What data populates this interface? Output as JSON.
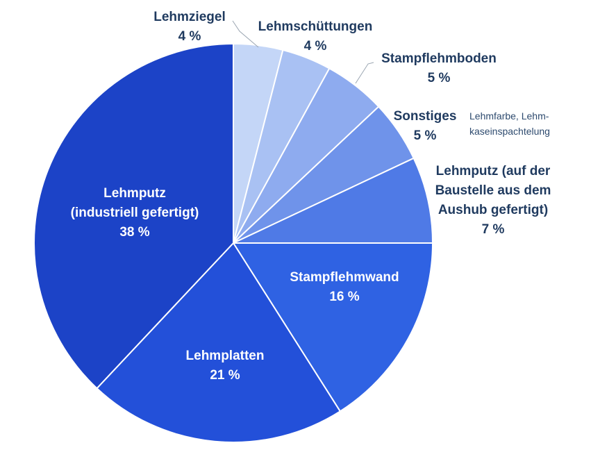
{
  "chart_data": {
    "type": "pie",
    "start": "top",
    "direction": "clockwise",
    "slices": [
      {
        "label": [
          "Lehmziegel"
        ],
        "value_label": "4 %",
        "value": 4,
        "color": "#c4d6f7"
      },
      {
        "label": [
          "Lehmschüttungen"
        ],
        "value_label": "4 %",
        "value": 4,
        "color": "#a9c1f3"
      },
      {
        "label": [
          "Stampflehmboden"
        ],
        "value_label": "5 %",
        "value": 5,
        "color": "#8eabef"
      },
      {
        "label": [
          "Sonstiges"
        ],
        "value_label": "5 %",
        "value": 5,
        "color": "#6f93ea",
        "note": [
          "Lehmfarbe, Lehm-",
          "kaseinspachtelung"
        ]
      },
      {
        "label": [
          "Lehmputz (auf der",
          "Baustelle aus dem",
          "Aushub gefertigt)"
        ],
        "value_label": "7 %",
        "value": 7,
        "color": "#4f7ae6"
      },
      {
        "label": [
          "Stampflehmwand"
        ],
        "value_label": "16 %",
        "value": 16,
        "color": "#2f62e3"
      },
      {
        "label": [
          "Lehmplatten"
        ],
        "value_label": "21 %",
        "value": 21,
        "color": "#2350d9"
      },
      {
        "label": [
          "Lehmputz",
          "(industriell gefertigt)"
        ],
        "value_label": "38 %",
        "value": 38,
        "color": "#1c43c7"
      }
    ]
  }
}
